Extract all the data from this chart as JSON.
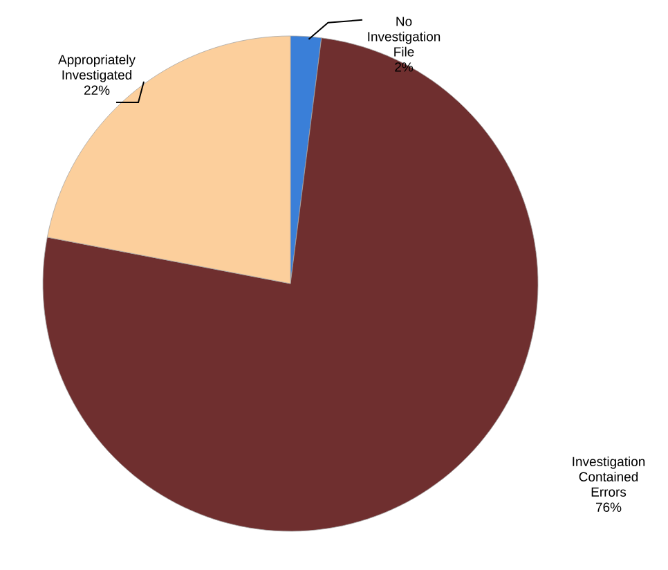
{
  "chart_data": {
    "type": "pie",
    "categories": [
      "No Investigation File",
      "Investigation Contained Errors",
      "Appropriately Investigated"
    ],
    "values": [
      2,
      76,
      22
    ],
    "value_labels": [
      "2%",
      "76%",
      "22%"
    ],
    "colors": [
      "#3a7fd8",
      "#6f2f2f",
      "#fccf9c"
    ]
  }
}
